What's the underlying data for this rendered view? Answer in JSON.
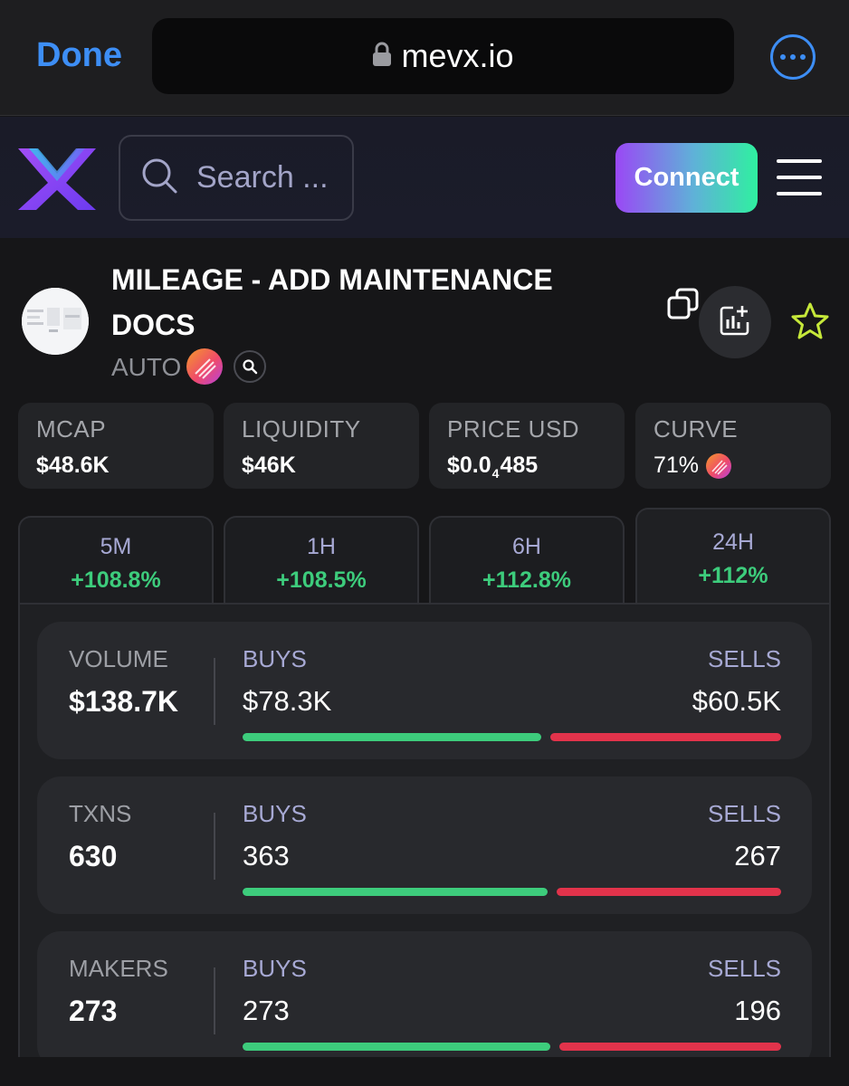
{
  "browser": {
    "done_label": "Done",
    "url": "mevx.io",
    "icons": [
      "lock-icon",
      "more-options-icon"
    ]
  },
  "header": {
    "search_placeholder": "Search ...",
    "connect_label": "Connect",
    "icons": [
      "mevx-logo-icon",
      "search-icon",
      "hamburger-menu-icon"
    ]
  },
  "token": {
    "name": "MILEAGE - ADD MAINTENANCE DOCS",
    "symbol": "AUTO",
    "icons": [
      "pump-badge-icon",
      "search-badge-icon",
      "copy-icon",
      "add-chart-icon",
      "star-icon"
    ]
  },
  "stats": [
    {
      "label": "MCAP",
      "value": "$48.6K"
    },
    {
      "label": "LIQUIDITY",
      "value": "$46K"
    },
    {
      "label": "PRICE USD",
      "value_prefix": "$0.0",
      "value_sub": "4",
      "value_suffix": "485"
    },
    {
      "label": "CURVE",
      "value": "71%"
    }
  ],
  "timeframes": [
    {
      "label": "5M",
      "change": "+108.8%",
      "active": false
    },
    {
      "label": "1H",
      "change": "+108.5%",
      "active": false
    },
    {
      "label": "6H",
      "change": "+112.8%",
      "active": false
    },
    {
      "label": "24H",
      "change": "+112%",
      "active": true
    }
  ],
  "metrics": [
    {
      "label": "VOLUME",
      "total": "$138.7K",
      "buys_label": "BUYS",
      "buys": "$78.3K",
      "sells_label": "SELLS",
      "sells": "$60.5K",
      "buy_fraction": 0.564
    },
    {
      "label": "TXNS",
      "total": "630",
      "buys_label": "BUYS",
      "buys": "363",
      "sells_label": "SELLS",
      "sells": "267",
      "buy_fraction": 0.576
    },
    {
      "label": "MAKERS",
      "total": "273",
      "buys_label": "BUYS",
      "buys": "273",
      "sells_label": "SELLS",
      "sells": "196",
      "buy_fraction": 0.582
    }
  ],
  "colors": {
    "accent_blue": "#3d8ef5",
    "buy_green": "#3dcc7c",
    "sell_red": "#e2334b",
    "connect_gradient": [
      "#9a48f5",
      "#2ff0a0"
    ]
  }
}
